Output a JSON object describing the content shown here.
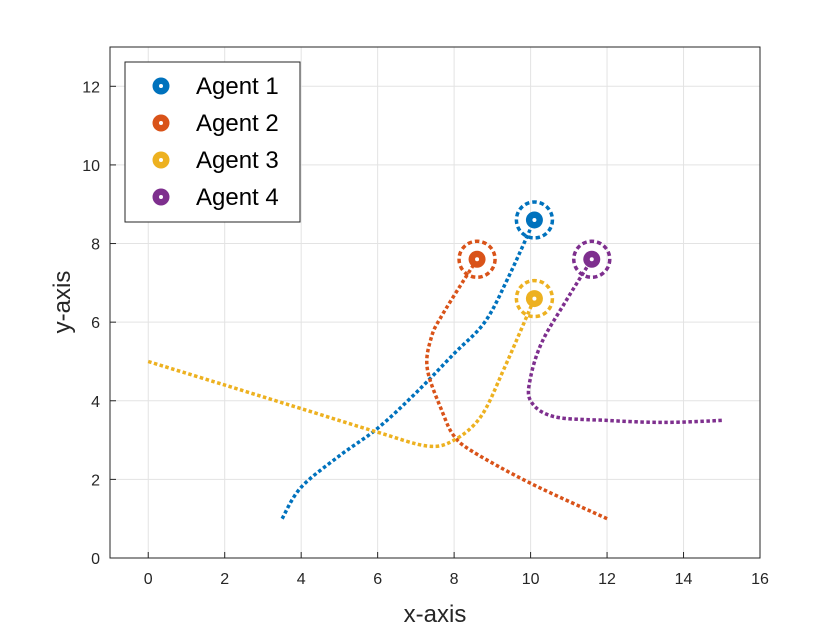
{
  "chart_data": {
    "type": "line",
    "title": "",
    "xlabel": "x-axis",
    "ylabel": "y-axis",
    "xlim": [
      -1,
      16
    ],
    "ylim": [
      0,
      13
    ],
    "xticks": [
      0,
      2,
      4,
      6,
      8,
      10,
      12,
      14,
      16
    ],
    "yticks": [
      0,
      2,
      4,
      6,
      8,
      10,
      12
    ],
    "grid": true,
    "legend_position": "top-left",
    "colors": {
      "Agent 1": "#0072BD",
      "Agent 2": "#D95319",
      "Agent 3": "#EDB120",
      "Agent 4": "#7E2F8E"
    },
    "series": [
      {
        "name": "Agent 1",
        "x": [
          3.5,
          4,
          5,
          6,
          7,
          8,
          8.8,
          9.4,
          10.1
        ],
        "y": [
          1.0,
          1.8,
          2.6,
          3.3,
          4.2,
          5.2,
          6.0,
          7.1,
          8.6
        ],
        "marker": [
          10.1,
          8.6
        ]
      },
      {
        "name": "Agent 2",
        "x": [
          12,
          10,
          8.5,
          8.0,
          7.7,
          7.3,
          7.4,
          7.7,
          8.6
        ],
        "y": [
          1.0,
          1.9,
          2.7,
          3.1,
          3.7,
          4.8,
          5.6,
          6.2,
          7.6
        ],
        "marker": [
          8.6,
          7.6
        ]
      },
      {
        "name": "Agent 3",
        "x": [
          0,
          2,
          4,
          6,
          7.3,
          8.0,
          8.7,
          9.3,
          10.1
        ],
        "y": [
          5.0,
          4.4,
          3.8,
          3.2,
          2.85,
          3.0,
          3.6,
          4.8,
          6.6
        ],
        "marker": [
          10.1,
          6.6
        ]
      },
      {
        "name": "Agent 4",
        "x": [
          15,
          13.5,
          12,
          10.6,
          10.0,
          10.0,
          10.3,
          10.9,
          11.6
        ],
        "y": [
          3.5,
          3.45,
          3.5,
          3.6,
          4.0,
          4.6,
          5.5,
          6.5,
          7.6
        ],
        "marker": [
          11.6,
          7.6
        ]
      }
    ]
  }
}
